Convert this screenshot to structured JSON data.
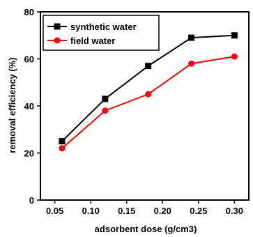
{
  "chart_data": {
    "type": "line",
    "title": "",
    "xlabel": "adsorbent dose (g/cm3)",
    "ylabel": "removal efficiency (%)",
    "xlim": [
      0.03,
      0.32
    ],
    "ylim": [
      0,
      80
    ],
    "x_ticks": [
      "0.05",
      "0.10",
      "0.15",
      "0.20",
      "0.25",
      "0.30"
    ],
    "x_tick_values": [
      0.05,
      0.1,
      0.15,
      0.2,
      0.25,
      0.3
    ],
    "y_ticks": [
      "0",
      "20",
      "40",
      "60",
      "80"
    ],
    "y_tick_values": [
      0,
      20,
      40,
      60,
      80
    ],
    "grid": false,
    "legend_position": "top-left",
    "x": [
      0.06,
      0.12,
      0.18,
      0.24,
      0.3
    ],
    "series": [
      {
        "name": "synthetic water",
        "color": "#000000",
        "marker": "square",
        "values": [
          25,
          43,
          57,
          69,
          70
        ]
      },
      {
        "name": "field water",
        "color": "#ff0000",
        "marker": "circle",
        "values": [
          22,
          38,
          45,
          58,
          61
        ]
      }
    ]
  }
}
